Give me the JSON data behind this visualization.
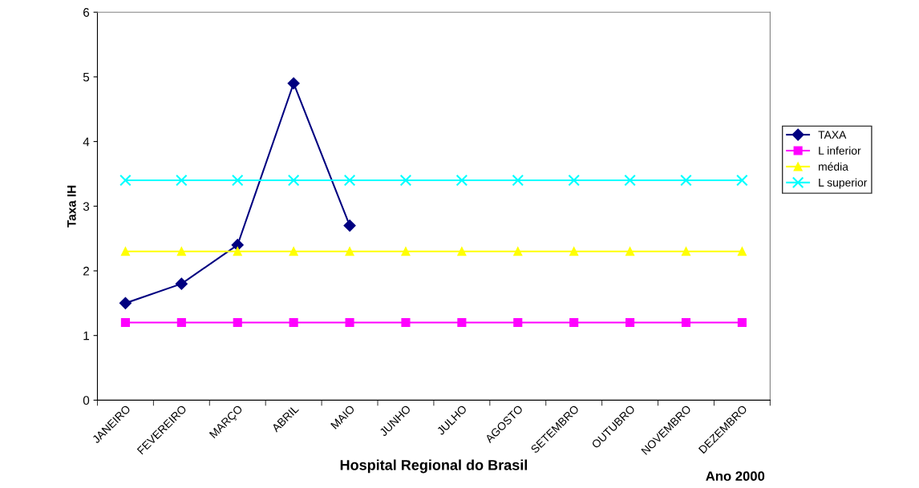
{
  "chart_data": {
    "type": "line",
    "xlabel": "Hospital Regional do Brasil",
    "ylabel": "Taxa IH",
    "annotations": [
      "Ano 2000"
    ],
    "categories": [
      "JANEIRO",
      "FEVEREIRO",
      "MARÇO",
      "ABRIL",
      "MAIO",
      "JUNHO",
      "JULHO",
      "AGOSTO",
      "SETEMBRO",
      "OUTUBRO",
      "NOVEMBRO",
      "DEZEMBRO"
    ],
    "series": [
      {
        "name": "TAXA",
        "color": "#000080",
        "marker": "diamond",
        "values": [
          1.5,
          1.8,
          2.4,
          4.9,
          2.7,
          null,
          null,
          null,
          null,
          null,
          null,
          null
        ]
      },
      {
        "name": "L inferior",
        "color": "#ff00ff",
        "marker": "square",
        "values": [
          1.2,
          1.2,
          1.2,
          1.2,
          1.2,
          1.2,
          1.2,
          1.2,
          1.2,
          1.2,
          1.2,
          1.2
        ]
      },
      {
        "name": "média",
        "color": "#ffff00",
        "marker": "triangle",
        "values": [
          2.3,
          2.3,
          2.3,
          2.3,
          2.3,
          2.3,
          2.3,
          2.3,
          2.3,
          2.3,
          2.3,
          2.3
        ]
      },
      {
        "name": "L superior",
        "color": "#00ffff",
        "marker": "cross",
        "values": [
          3.4,
          3.4,
          3.4,
          3.4,
          3.4,
          3.4,
          3.4,
          3.4,
          3.4,
          3.4,
          3.4,
          3.4
        ]
      }
    ],
    "ylim": [
      0,
      6
    ],
    "yticks": [
      0,
      1,
      2,
      3,
      4,
      5,
      6
    ],
    "grid": false,
    "legend": "right",
    "line_style": "solid"
  }
}
